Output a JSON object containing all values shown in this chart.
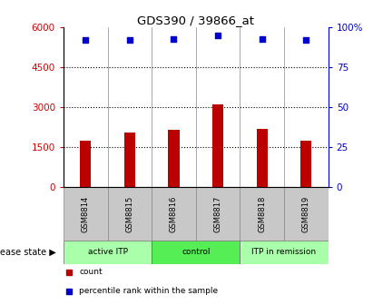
{
  "title": "GDS390 / 39866_at",
  "samples": [
    "GSM8814",
    "GSM8815",
    "GSM8816",
    "GSM8817",
    "GSM8818",
    "GSM8819"
  ],
  "counts": [
    1750,
    2050,
    2150,
    3100,
    2200,
    1750
  ],
  "percentiles": [
    92,
    92,
    93,
    95,
    93,
    92
  ],
  "bar_color": "#bb0000",
  "dot_color": "#0000cc",
  "ylim_left": [
    0,
    6000
  ],
  "ylim_right": [
    0,
    100
  ],
  "yticks_left": [
    0,
    1500,
    3000,
    4500,
    6000
  ],
  "ytick_labels_left": [
    "0",
    "1500",
    "3000",
    "4500",
    "6000"
  ],
  "yticks_right": [
    0,
    25,
    50,
    75,
    100
  ],
  "ytick_labels_right": [
    "0",
    "25",
    "50",
    "75",
    "100%"
  ],
  "grid_values": [
    1500,
    3000,
    4500
  ],
  "groups": [
    {
      "label": "active ITP",
      "start": 0,
      "end": 1,
      "color": "#aaffaa"
    },
    {
      "label": "control",
      "start": 2,
      "end": 3,
      "color": "#55ee55"
    },
    {
      "label": "ITP in remission",
      "start": 4,
      "end": 5,
      "color": "#aaffaa"
    }
  ],
  "disease_state_label": "disease state",
  "legend_items": [
    {
      "label": "count",
      "color": "#bb0000"
    },
    {
      "label": "percentile rank within the sample",
      "color": "#0000cc"
    }
  ],
  "left_axis_color": "#cc0000",
  "right_axis_color": "#0000cc",
  "sample_box_color": "#c8c8c8",
  "bar_width": 0.25
}
